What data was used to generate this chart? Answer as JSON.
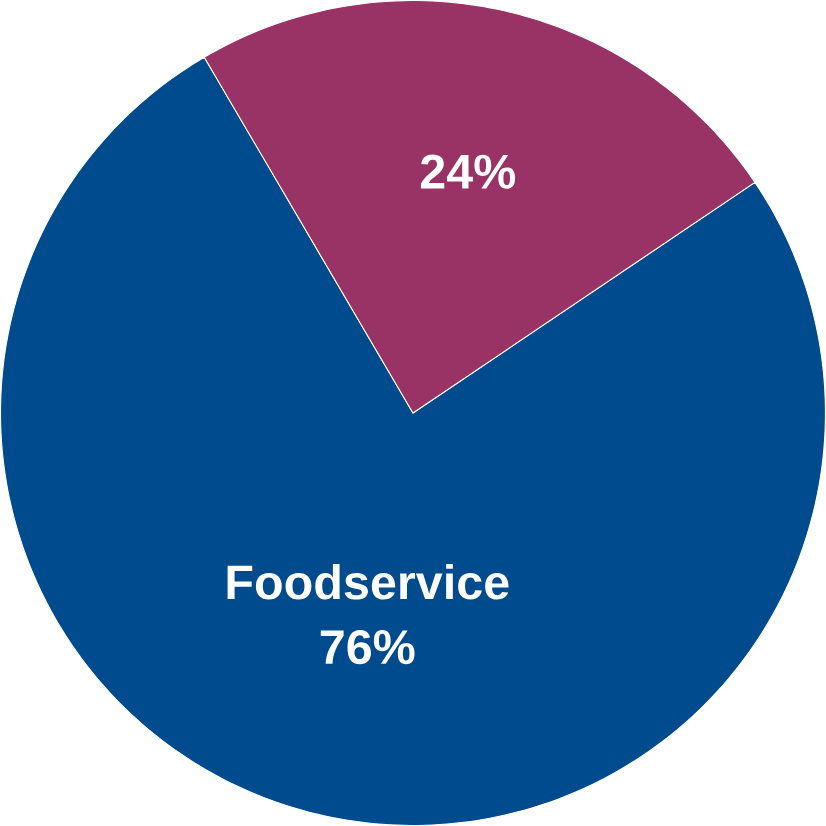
{
  "chart_data": {
    "type": "pie",
    "categories": [
      "Foodservice",
      null
    ],
    "values": [
      76,
      24
    ],
    "colors": [
      "#004b8d",
      "#993366"
    ],
    "value_labels": [
      "76%",
      "24%"
    ]
  }
}
